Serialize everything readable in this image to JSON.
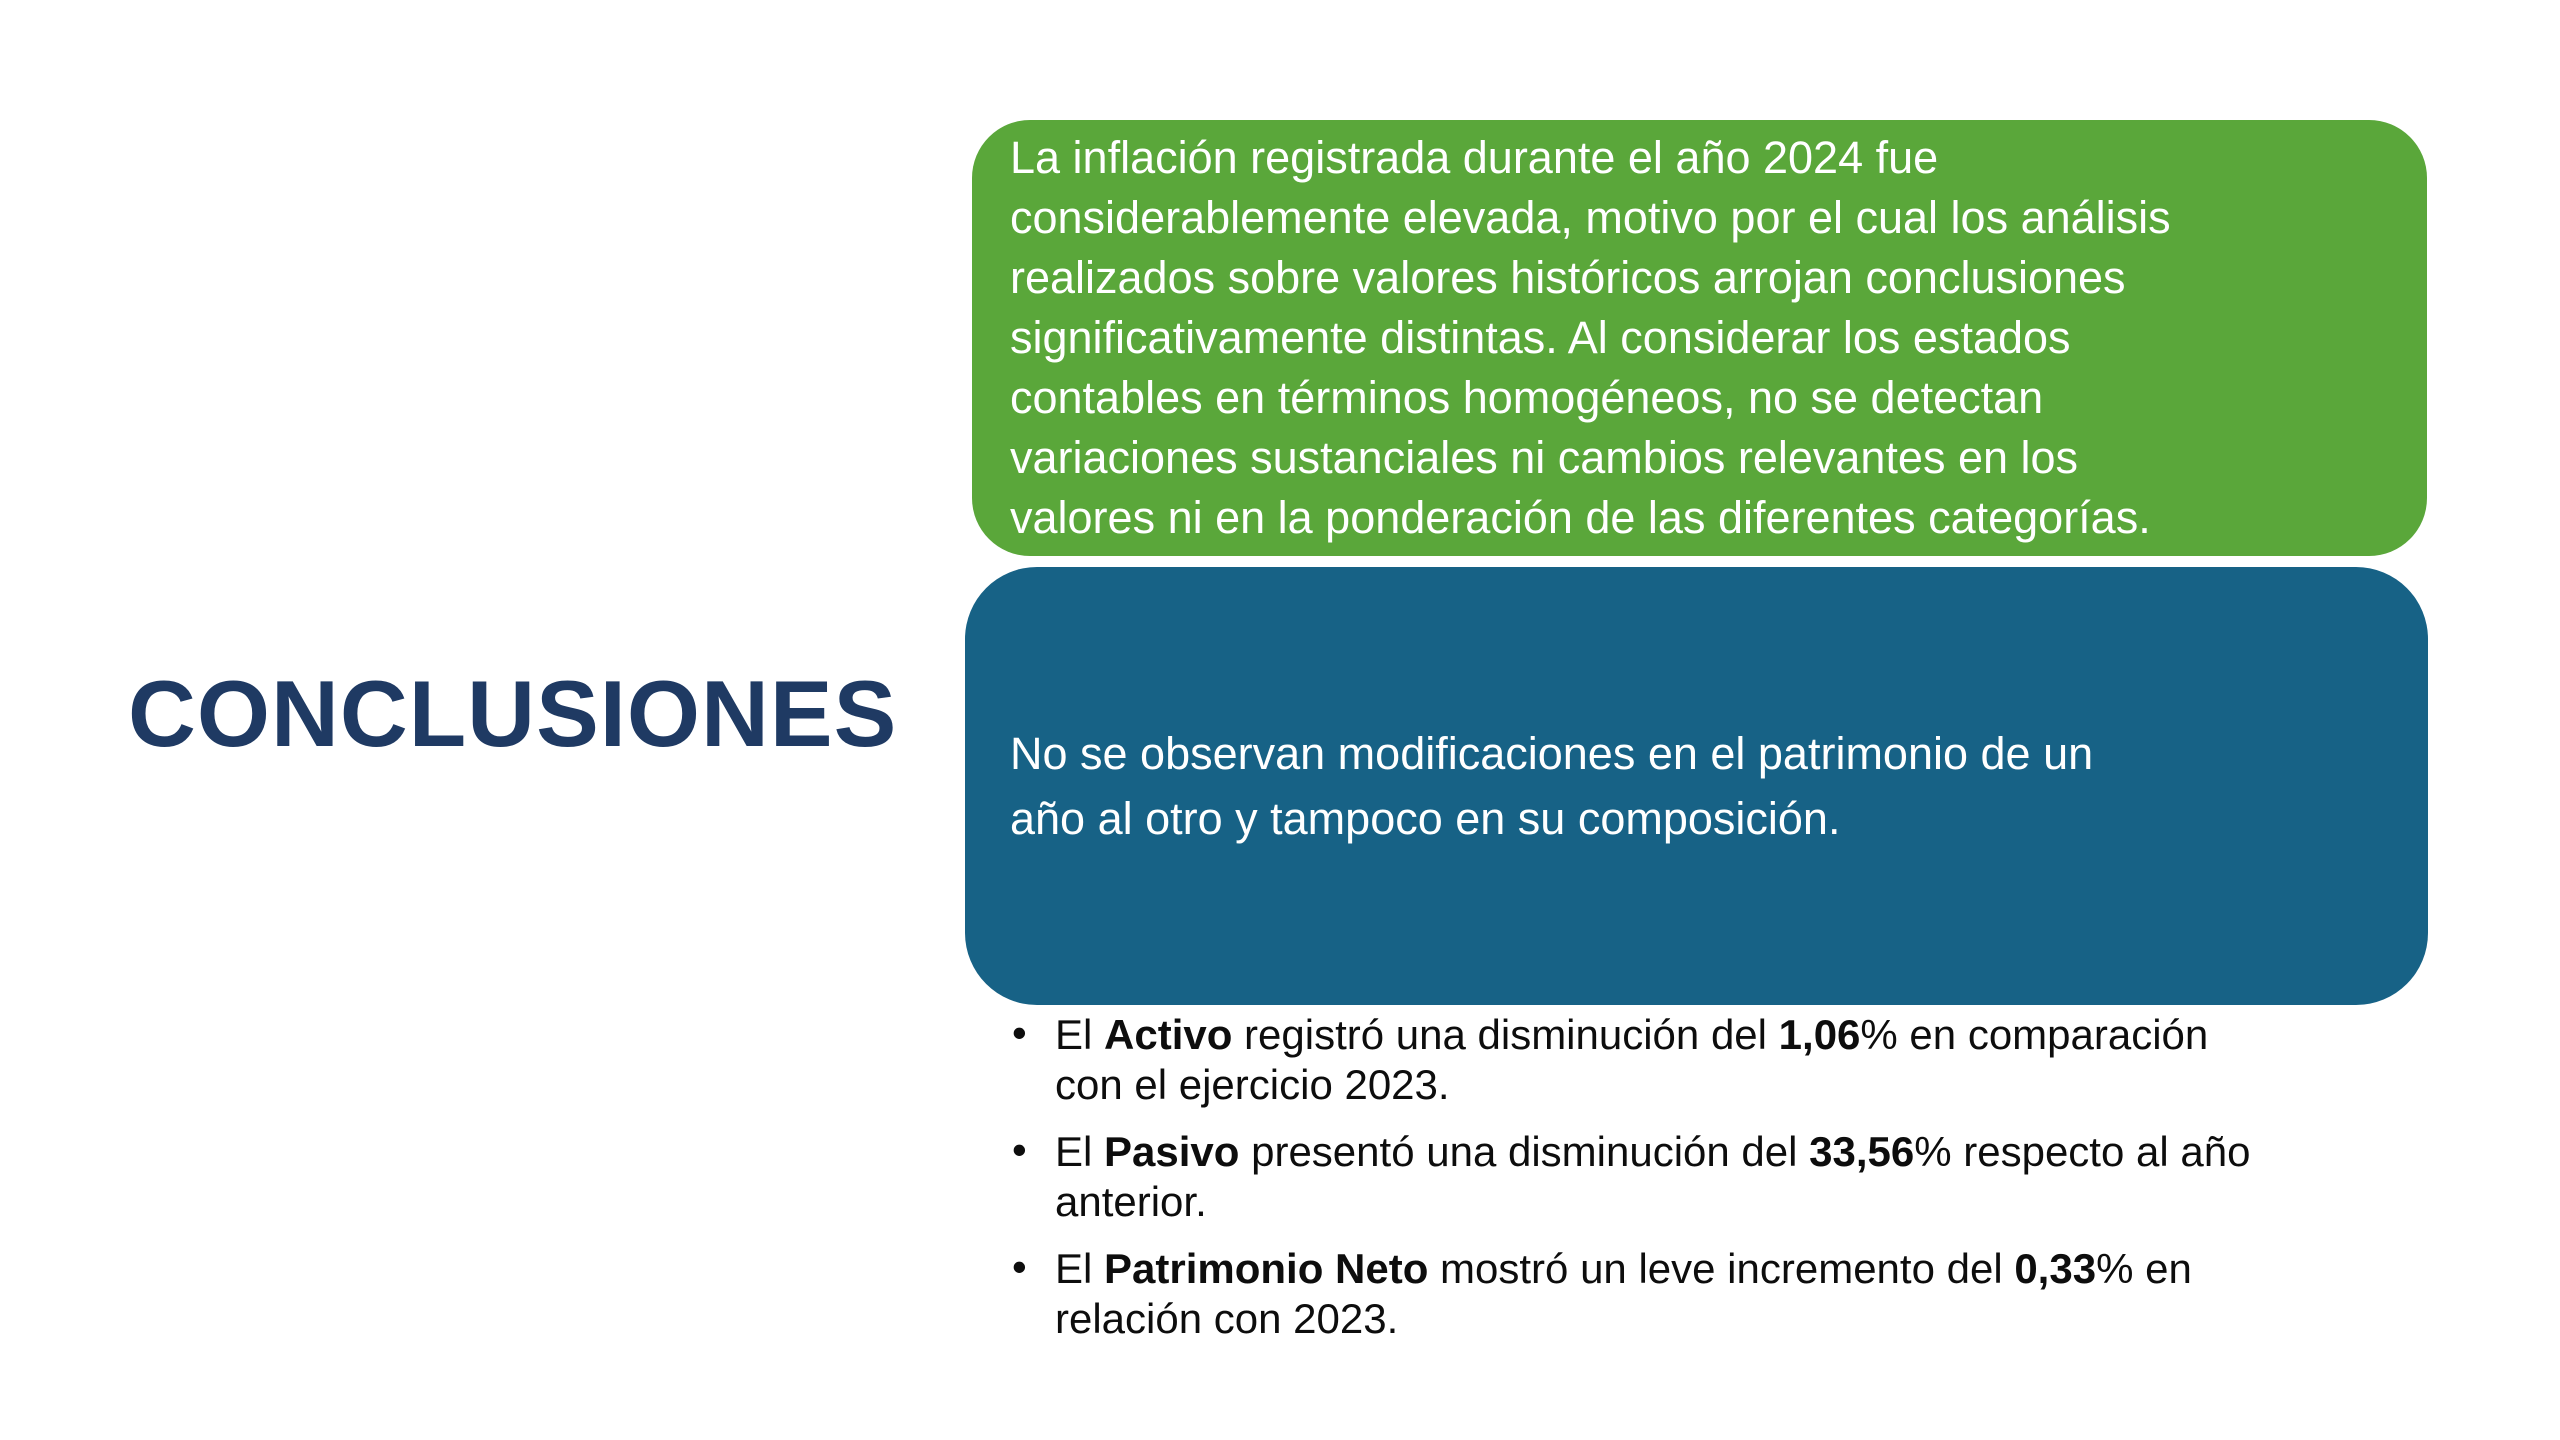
{
  "slide": {
    "title": "CONCLUSIONES",
    "bullet_marker": "•",
    "colors": {
      "green": "#5aa73a",
      "blue": "#176286",
      "title_navy": "#1f3a63",
      "body_text": "#0d0d0d",
      "box_text": "#ffffff"
    },
    "green_box": {
      "lines": [
        "La inflación registrada durante el año 2024 fue",
        "considerablemente elevada, motivo por el cual los análisis",
        "realizados sobre valores históricos arrojan conclusiones",
        "significativamente distintas. Al considerar los estados",
        "contables en términos homogéneos, no se detectan",
        "variaciones sustanciales ni cambios relevantes en los",
        "valores ni en la ponderación de las diferentes categorías."
      ]
    },
    "blue_box": {
      "lines": [
        "No se observan modificaciones en el patrimonio de un",
        "año al otro y tampoco en su composición."
      ]
    },
    "bullets": [
      {
        "lines": [
          [
            {
              "t": "El ",
              "b": false
            },
            {
              "t": "Activo",
              "b": true
            },
            {
              "t": " registró una disminución del ",
              "b": false
            },
            {
              "t": "1,06",
              "b": true
            },
            {
              "t": "% en comparación",
              "b": false
            }
          ],
          [
            {
              "t": "con el ejercicio 2023.",
              "b": false
            }
          ]
        ]
      },
      {
        "lines": [
          [
            {
              "t": "El ",
              "b": false
            },
            {
              "t": "Pasivo",
              "b": true
            },
            {
              "t": " presentó una disminución del ",
              "b": false
            },
            {
              "t": "33,56",
              "b": true
            },
            {
              "t": "% respecto al año",
              "b": false
            }
          ],
          [
            {
              "t": "anterior.",
              "b": false
            }
          ]
        ]
      },
      {
        "lines": [
          [
            {
              "t": "El ",
              "b": false
            },
            {
              "t": "Patrimonio Neto",
              "b": true
            },
            {
              "t": " mostró un leve incremento del ",
              "b": false
            },
            {
              "t": "0,33",
              "b": true
            },
            {
              "t": "% en",
              "b": false
            }
          ],
          [
            {
              "t": "relación con 2023.",
              "b": false
            }
          ]
        ]
      }
    ]
  }
}
